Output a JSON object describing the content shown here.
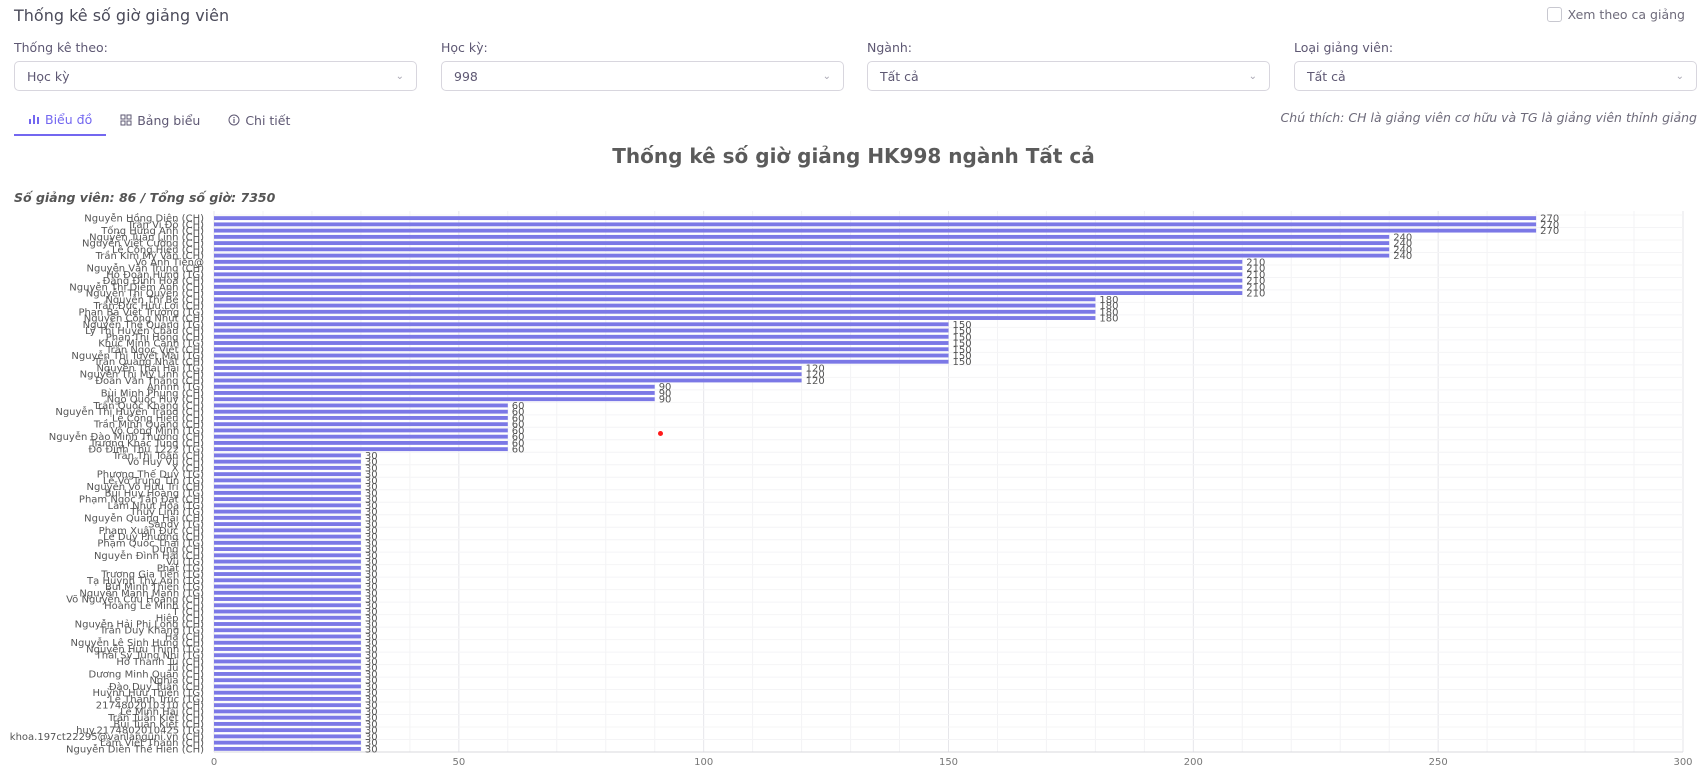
{
  "header": {
    "title": "Thống kê số giờ giảng viên",
    "shift_toggle_label": "Xem theo ca giảng"
  },
  "filters": [
    {
      "label": "Thống kê theo:",
      "value": "Học kỳ"
    },
    {
      "label": "Học kỳ:",
      "value": "998"
    },
    {
      "label": "Ngành:",
      "value": "Tất cả"
    },
    {
      "label": "Loại giảng viên:",
      "value": "Tất cả"
    }
  ],
  "tabs": [
    {
      "label": "Biểu đồ",
      "icon": "bar-chart-icon",
      "active": true
    },
    {
      "label": "Bảng biểu",
      "icon": "grid-icon",
      "active": false
    },
    {
      "label": "Chi tiết",
      "icon": "info-icon",
      "active": false
    }
  ],
  "note": "Chú thích: CH là giảng viên cơ hữu và TG là giảng viên thỉnh giảng",
  "chart": {
    "title": "Thống kê số giờ giảng HK998 ngành Tất cả",
    "summary": "Số giảng viên: 86 / Tổng số giờ: 7350"
  },
  "colors": {
    "bar": "#7b78e6",
    "accent": "#7367f0"
  },
  "chart_data": {
    "type": "bar",
    "orientation": "horizontal",
    "xlim": [
      0,
      300
    ],
    "xticks": [
      0,
      50,
      100,
      150,
      200,
      250,
      300
    ],
    "grid": true,
    "categories": [
      "Nguyễn Hồng Diên (CH)",
      "Trần Vi Đô (CH)",
      "Tống Hưng Anh (CH)",
      "Nguyễn Tuấn Linh (CH)",
      "Nguyễn Việt Cường (CH)",
      "Lê Công Hiếu (CH)",
      "Trần Kim Mỹ Vân (CH)",
      "Võ Anh Tiến@ ",
      "Nguyễn Văn Trung (CH)",
      "Hồ Đoàn Hưng (TG)",
      "Đặng Đình Hòa (CH)",
      "Nguyễn Thị Diễm Anh (CH)",
      "Nguyễn Thị Quyên (CH)",
      "Nguyễn Thị Bé (CH)",
      "Trần Đức Hữu Lợi (CH)",
      "Phan Bá Việt Trường (TG)",
      "Nguyễn Công Nhựt (CH)",
      "Nguyễn Thế Quang (TG)",
      "Lý Thị Huyền Châu (CH)",
      "Phan Thị Hồng (CH)",
      "Khúc Minh Cảnh (TG)",
      "Trần Ngọc Việt (CH)",
      "Nguyễn Thị Tuyết Mai (TG)",
      "Trần Quang Nhật (CH)",
      "Nguyễn Thái Hải (TG)",
      "Nguyễn Thị Mỹ Linh (CH)",
      "Đoàn Văn Thắng (CH)",
      "Annnn (TG)",
      "Bùi Minh Phụng (CH)",
      "Ngô Quốc Huy (CH)",
      "Trần Quốc Khang (CH)",
      "Nguyễn Thị Huyền Trang (CH)",
      "Lê Công Hiếu (CH)",
      "Trần Minh Quang (CH)",
      "Võ Công Minh (TG)",
      "Nguyễn Đào Minh Thương (CH)",
      "Trương Khắc Tùng (CH)",
      "Đỗ Đình Thủ 1222 (TG)",
      "Trần Thị Toàn (CH)",
      "Võ Huy Vũ (CH)",
      "X (CH)",
      "Phương Thế Duy (TG)",
      "Lê Võ Trung Tín (TG)",
      "Nguyễn Võ Hữu Trí (CH)",
      "Bùi Huy Hoàng (TG)",
      "Phạm Ngọc Tấn Đạt (CH)",
      "Lâm Nhựt Hòa (TG)",
      "Thùy Linh (TG)",
      "Nguyễn Quang Hải (CH)",
      "Sandy (TG)",
      "Phạm Xuân Đức (CH)",
      "Lê Duy Phương (CH)",
      "Phạm Quốc Thái (TG)",
      "Dũng (CH)",
      "Nguyễn Đình Hải (CH)",
      "Vũ (TG)",
      "Phát (TG)",
      "Trương Gia Tiến (TG)",
      "Tạ Huỳnh Thy Anh (TG)",
      "Bùi Minh Thiện (TG)",
      "Nguyễn Mạnh Mạnh (TG)",
      "Võ Nguyễn Cửu Hoàng (CH)",
      "Hoàng Lê Minh (CH)",
      "T (CH)",
      "Hiệp (CH)",
      "Nguyễn Hải Phi Long (CH)",
      "Trần Duy Khang (TG)",
      "Ha (CH)",
      "Nguyễn Lê Sinh Hưng (CH)",
      "Nguyễn Hữu Thịnh (TG)",
      "Thái Sỹ Tùng Nhi (TG)",
      "Hồ Thanh Tú (CH)",
      "Tú (CH)",
      "Dương Minh Quân (CH)",
      "Nghĩa (CH)",
      "Đào Duy Tuấn (CH)",
      "Huỳnh Hữu Thiện (TG)",
      "Lê Thanh Trúc (TG)",
      "2174802010310 (CH)",
      "Lê Minh Hải (CH)",
      "Trần Tuấn Kiệt (CH)",
      "Bùi Tuấn Kiệt (CH)",
      "huy.2174802010425 (TG)",
      "khoa.197ct22295@vanlanguni.vn (CH)",
      "Lâm Việt Thanh (CH)",
      "Nguyễn Diên Thế Hiên (CH)"
    ],
    "values": [
      270,
      270,
      270,
      240,
      240,
      240,
      240,
      210,
      210,
      210,
      210,
      210,
      210,
      180,
      180,
      180,
      180,
      150,
      150,
      150,
      150,
      150,
      150,
      150,
      120,
      120,
      120,
      90,
      90,
      90,
      60,
      60,
      60,
      60,
      60,
      60,
      60,
      60,
      30,
      30,
      30,
      30,
      30,
      30,
      30,
      30,
      30,
      30,
      30,
      30,
      30,
      30,
      30,
      30,
      30,
      30,
      30,
      30,
      30,
      30,
      30,
      30,
      30,
      30,
      30,
      30,
      30,
      30,
      30,
      30,
      30,
      30,
      30,
      30,
      30,
      30,
      30,
      30,
      30,
      30,
      30,
      30,
      30,
      30,
      30,
      30
    ]
  }
}
